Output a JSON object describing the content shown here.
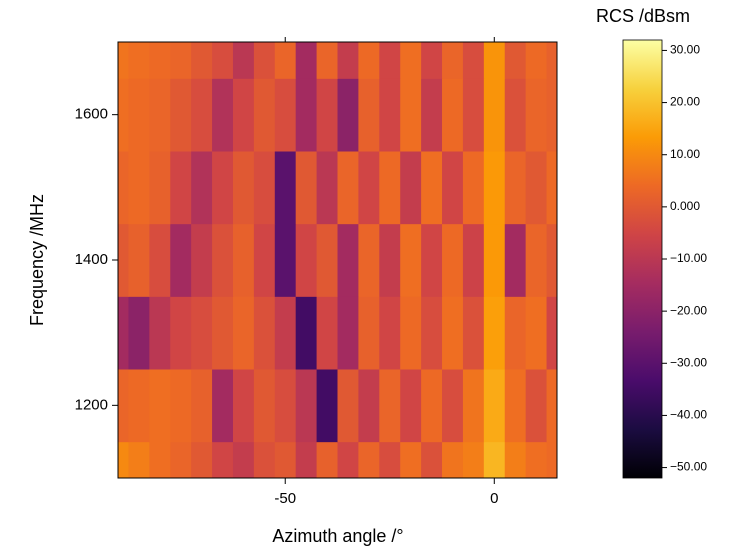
{
  "chart_data": {
    "type": "heatmap",
    "xlabel": "Azimuth angle /°",
    "ylabel": "Frequency /MHz",
    "colorbar_label": "RCS /dBsm",
    "x": [
      -90,
      -85,
      -80,
      -75,
      -70,
      -65,
      -60,
      -55,
      -50,
      -45,
      -40,
      -35,
      -30,
      -25,
      -20,
      -15,
      -10,
      -5,
      0,
      5,
      10,
      15
    ],
    "y": [
      1100,
      1200,
      1300,
      1400,
      1500,
      1600,
      1700
    ],
    "z": [
      [
        10,
        8,
        5,
        3,
        0,
        -5,
        -8,
        -2,
        0,
        -8,
        2,
        -5,
        3,
        -3,
        5,
        -2,
        6,
        8,
        18,
        8,
        5,
        4
      ],
      [
        3,
        4,
        5,
        4,
        2,
        -15,
        -5,
        0,
        -3,
        -10,
        -35,
        0,
        -8,
        3,
        -5,
        4,
        -3,
        6,
        16,
        5,
        -2,
        4
      ],
      [
        -15,
        -20,
        -10,
        -5,
        -3,
        0,
        3,
        -2,
        -8,
        -35,
        -5,
        -15,
        2,
        -5,
        4,
        -3,
        5,
        -2,
        14,
        3,
        5,
        -5
      ],
      [
        0,
        2,
        -3,
        -15,
        -8,
        -2,
        2,
        -5,
        -30,
        -5,
        0,
        -15,
        3,
        -8,
        5,
        -5,
        4,
        -6,
        13,
        -15,
        3,
        0
      ],
      [
        3,
        4,
        2,
        -5,
        -12,
        -5,
        0,
        -3,
        -30,
        0,
        -10,
        3,
        -5,
        4,
        -8,
        5,
        -5,
        4,
        13,
        3,
        0,
        4
      ],
      [
        5,
        4,
        3,
        0,
        -3,
        -12,
        -5,
        0,
        -3,
        -15,
        -5,
        -20,
        2,
        -5,
        5,
        -8,
        4,
        -3,
        12,
        -2,
        3,
        2
      ],
      [
        6,
        5,
        4,
        3,
        0,
        -3,
        -10,
        -2,
        3,
        -15,
        3,
        -8,
        4,
        -5,
        5,
        -5,
        3,
        -3,
        12,
        0,
        4,
        2
      ]
    ],
    "xlim": [
      -90,
      15
    ],
    "ylim": [
      1100,
      1700
    ],
    "zlim": [
      -52,
      32
    ],
    "xticks": [
      -50,
      0
    ],
    "yticks": [
      1200,
      1400,
      1600
    ],
    "zticks": [
      {
        "value": 30,
        "label": "30.00"
      },
      {
        "value": 20,
        "label": "20.00"
      },
      {
        "value": 10,
        "label": "10.00"
      },
      {
        "value": 0,
        "label": "0.000"
      },
      {
        "value": -10,
        "label": "−10.00"
      },
      {
        "value": -20,
        "label": "−20.00"
      },
      {
        "value": -30,
        "label": "−30.00"
      },
      {
        "value": -40,
        "label": "−40.00"
      },
      {
        "value": -50,
        "label": "−50.00"
      }
    ],
    "colorscale": [
      "#000004",
      "#1b0c41",
      "#4a0c6b",
      "#781c6d",
      "#a52c60",
      "#cf4446",
      "#ed6925",
      "#fb9b06",
      "#f7d13d",
      "#fcffa4"
    ]
  }
}
